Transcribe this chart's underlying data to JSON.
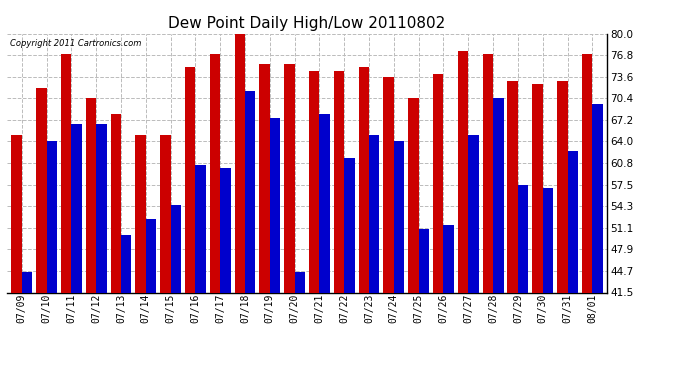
{
  "title": "Dew Point Daily High/Low 20110802",
  "copyright": "Copyright 2011 Cartronics.com",
  "dates": [
    "07/09",
    "07/10",
    "07/11",
    "07/12",
    "07/13",
    "07/14",
    "07/15",
    "07/16",
    "07/17",
    "07/18",
    "07/19",
    "07/20",
    "07/21",
    "07/22",
    "07/23",
    "07/24",
    "07/25",
    "07/26",
    "07/27",
    "07/28",
    "07/29",
    "07/30",
    "07/31",
    "08/01"
  ],
  "highs": [
    65.0,
    72.0,
    77.0,
    70.5,
    68.0,
    65.0,
    65.0,
    75.0,
    77.0,
    80.5,
    75.5,
    75.5,
    74.5,
    74.5,
    75.0,
    73.5,
    70.5,
    74.0,
    77.5,
    77.0,
    73.0,
    72.5,
    73.0,
    77.0
  ],
  "lows": [
    44.5,
    64.0,
    66.5,
    66.5,
    50.0,
    52.5,
    54.5,
    60.5,
    60.0,
    71.5,
    67.5,
    44.5,
    68.0,
    61.5,
    65.0,
    64.0,
    51.0,
    51.5,
    65.0,
    70.5,
    57.5,
    57.0,
    62.5,
    69.5
  ],
  "ymin": 41.5,
  "ymax": 80.0,
  "yticks": [
    41.5,
    44.7,
    47.9,
    51.1,
    54.3,
    57.5,
    60.8,
    64.0,
    67.2,
    70.4,
    73.6,
    76.8,
    80.0
  ],
  "high_color": "#cc0000",
  "low_color": "#0000cc",
  "bg_color": "#ffffff",
  "grid_color": "#bbbbbb",
  "title_fontsize": 11,
  "bar_width": 0.42
}
